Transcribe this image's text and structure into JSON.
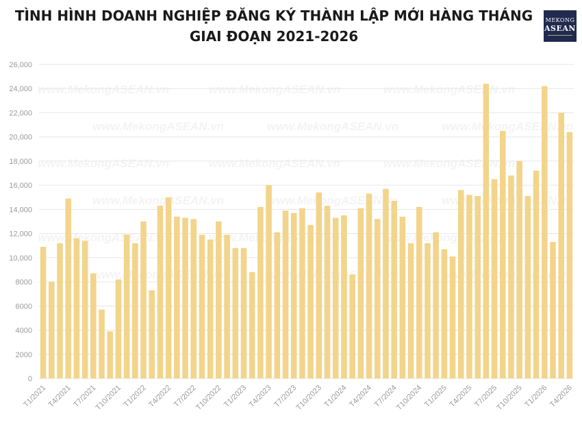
{
  "header": {
    "title": "TÌNH HÌNH DOANH NGHIỆP ĐĂNG KÝ THÀNH LẬP MỚI HÀNG THÁNG GIAI ĐOẠN 2021-2026",
    "logo_line1": "MEKONG",
    "logo_line2": "ASEAN"
  },
  "watermark": "www.MekongASEAN.vn",
  "colors": {
    "bar": "#F2D48B",
    "grid": "#e6e6e6",
    "axis_text": "#9a9a9a",
    "logo_bg": "#1f2a4e"
  },
  "chart_data": {
    "type": "bar",
    "ylim": [
      0,
      26000
    ],
    "yticks": [
      0,
      2000,
      4000,
      6000,
      8000,
      10000,
      12000,
      14000,
      16000,
      18000,
      20000,
      22000,
      24000,
      26000
    ],
    "ytick_labels": [
      "0",
      "2000",
      "4000",
      "6000",
      "8000",
      "10,000",
      "12,000",
      "14,000",
      "16,000",
      "18,000",
      "20,000",
      "22,000",
      "24,000",
      "26,000"
    ],
    "xtick_labels": [
      "T1/2021",
      "T4/2021",
      "T7/2021",
      "T10/2021",
      "T1/2022",
      "T4/2022",
      "T7/2022",
      "T10/2022",
      "T1/2023",
      "T4/2023",
      "T7/2023",
      "T10/2023",
      "T1/2024",
      "T4/2024",
      "T7/2024",
      "T10/2024",
      "T1/2025",
      "T4/2025",
      "T7/2025",
      "T10/2025",
      "T1/2026",
      "T4/2026"
    ],
    "grid": true,
    "values": [
      10900,
      8000,
      11200,
      14900,
      11600,
      11400,
      8700,
      5700,
      3900,
      8200,
      11900,
      11200,
      13000,
      7300,
      14300,
      15000,
      13400,
      13300,
      13200,
      11900,
      11500,
      13000,
      11900,
      10800,
      10800,
      8800,
      14200,
      16000,
      12100,
      13900,
      13700,
      14100,
      12700,
      15400,
      14300,
      13300,
      13500,
      8600,
      14100,
      15300,
      13200,
      15700,
      14700,
      13400,
      11200,
      14200,
      11200,
      12100,
      10700,
      10100,
      15600,
      15200,
      15100,
      24400,
      16500,
      20500,
      16800,
      18000,
      15100,
      17200,
      24200,
      11300,
      22000,
      20400
    ]
  }
}
